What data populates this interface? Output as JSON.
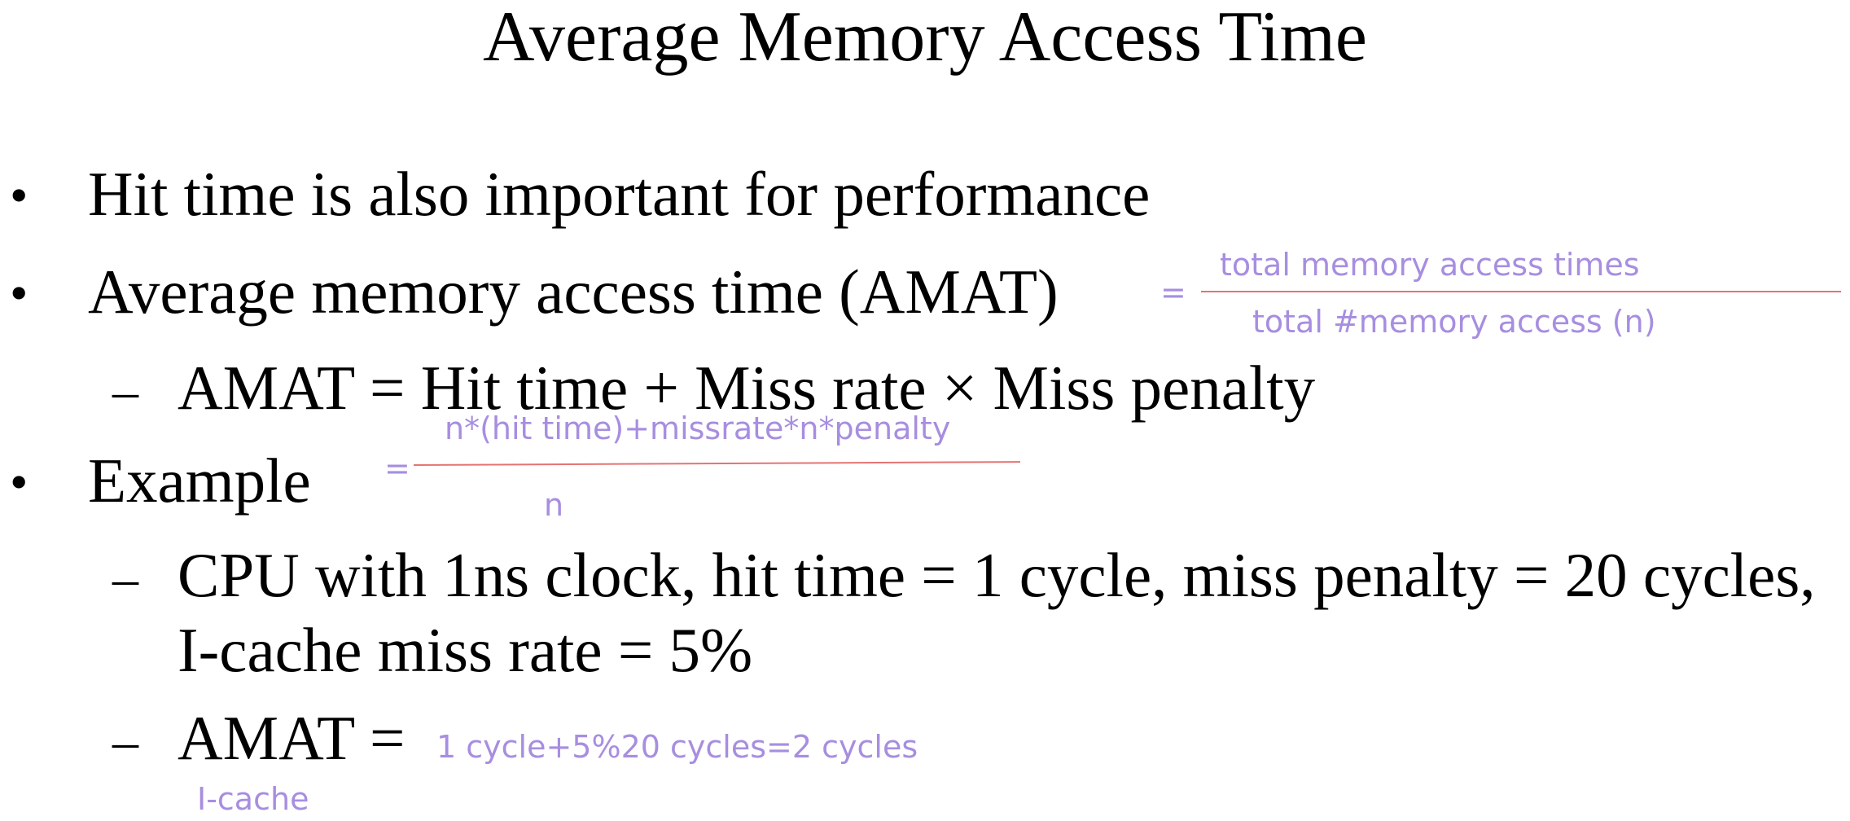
{
  "slide": {
    "title": "Average Memory Access Time",
    "bullets": [
      {
        "symbol": "•",
        "text": "Hit time is also important for performance"
      },
      {
        "symbol": "•",
        "text": "Average memory access time (AMAT)"
      },
      {
        "symbol": "–",
        "text": "AMAT = Hit time + Miss rate × Miss penalty"
      },
      {
        "symbol": "•",
        "text": "Example"
      },
      {
        "symbol": "–",
        "line1": "CPU with 1ns clock, hit time = 1 cycle, miss penalty = 20 cycles,",
        "line2": "I-cache miss rate = 5%"
      },
      {
        "symbol": "–",
        "text": "AMAT ="
      }
    ]
  },
  "annotations": {
    "amat_eq": "=",
    "amat_numerator": "total memory access times",
    "amat_denominator": "total #memory access (n)",
    "formula_eq": "=",
    "formula_numerator": "n*(hit time)+missrate*n*penalty",
    "formula_denominator": "n",
    "result": "1 cycle+5%20 cycles=2 cycles",
    "note": "I-cache"
  },
  "colors": {
    "text": "#000000",
    "handwriting": "#a78ee0",
    "fraction_line": "#e57373",
    "background": "#ffffff"
  }
}
